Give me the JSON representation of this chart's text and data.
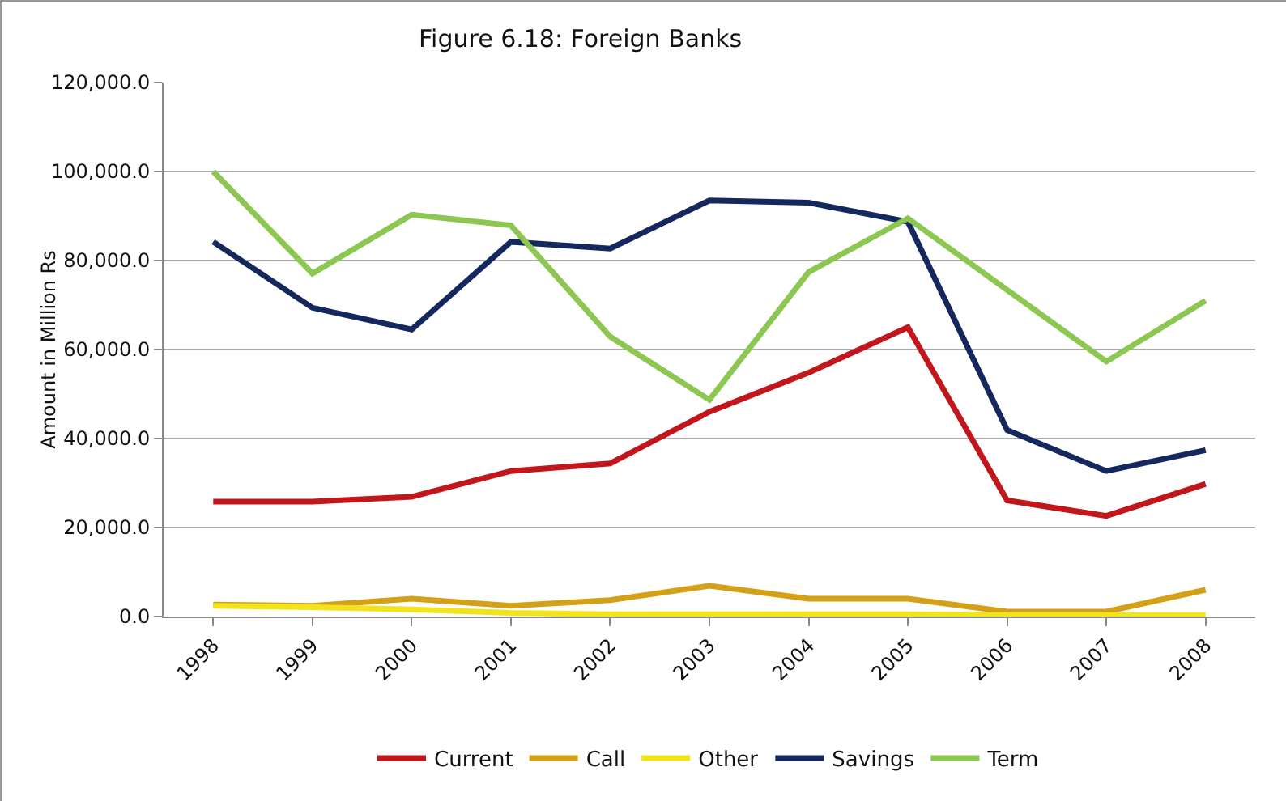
{
  "chart_data": {
    "type": "line",
    "title": "Figure 6.18: Foreign Banks",
    "ylabel": "Amount in Million Rs",
    "categories": [
      "1998",
      "1999",
      "2000",
      "2001",
      "2002",
      "2003",
      "2004",
      "2005",
      "2006",
      "2007",
      "2008"
    ],
    "series": [
      {
        "name": "Current",
        "color": "#c0161c",
        "values": [
          25800,
          25800,
          26900,
          32700,
          34400,
          46000,
          54800,
          65000,
          26100,
          22600,
          29800
        ]
      },
      {
        "name": "Call",
        "color": "#d4a017",
        "values": [
          2700,
          2400,
          4000,
          2400,
          3700,
          6900,
          4000,
          4000,
          1100,
          1100,
          6000
        ]
      },
      {
        "name": "Other",
        "color": "#f2e41c",
        "values": [
          2400,
          2100,
          1600,
          800,
          500,
          500,
          500,
          500,
          300,
          300,
          300
        ]
      },
      {
        "name": "Savings",
        "color": "#14285e",
        "values": [
          84200,
          69400,
          64500,
          84200,
          82700,
          93500,
          93000,
          88700,
          41900,
          32700,
          37400
        ]
      },
      {
        "name": "Term",
        "color": "#8cc751",
        "values": [
          100000,
          77100,
          90300,
          87900,
          62900,
          48700,
          77400,
          89500,
          73400,
          57300,
          71000
        ]
      }
    ],
    "ylim": [
      0,
      120000
    ],
    "yticks": [
      {
        "value": 0,
        "label": "0.0"
      },
      {
        "value": 20000,
        "label": "20,000.0"
      },
      {
        "value": 40000,
        "label": "40,000.0"
      },
      {
        "value": 60000,
        "label": "60,000.0"
      },
      {
        "value": 80000,
        "label": "80,000.0"
      },
      {
        "value": 100000,
        "label": "100,000.0"
      },
      {
        "value": 120000,
        "label": "120,000.0"
      }
    ],
    "grid": "y",
    "legend": "bottom",
    "marker": "none",
    "line_style": "solid"
  }
}
